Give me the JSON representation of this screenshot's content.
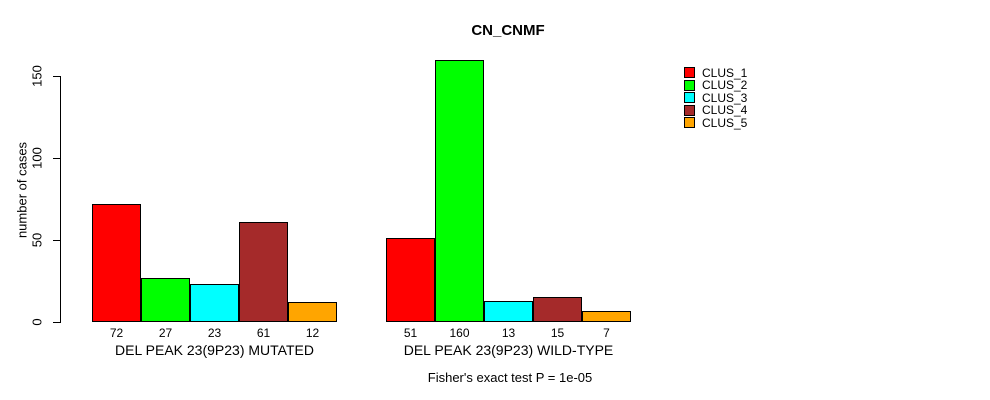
{
  "title": "CN_CNMF",
  "footnote": "Fisher's exact test P = 1e-05",
  "y_axis": {
    "label": "number of cases",
    "ticks": [
      0,
      50,
      100,
      150
    ]
  },
  "legend": {
    "items": [
      {
        "label": "CLUS_1",
        "color": "#FF0000"
      },
      {
        "label": "CLUS_2",
        "color": "#00FF00"
      },
      {
        "label": "CLUS_3",
        "color": "#00FFFF"
      },
      {
        "label": "CLUS_4",
        "color": "#A52A2A"
      },
      {
        "label": "CLUS_5",
        "color": "#FFA500"
      }
    ]
  },
  "chart_data": {
    "type": "bar",
    "title": "CN_CNMF",
    "xlabel": "",
    "ylabel": "number of cases",
    "ylim": [
      0,
      160
    ],
    "yticks": [
      0,
      50,
      100,
      150
    ],
    "grid": false,
    "legend_position": "right-outside",
    "series_names": [
      "CLUS_1",
      "CLUS_2",
      "CLUS_3",
      "CLUS_4",
      "CLUS_5"
    ],
    "series_colors": [
      "#FF0000",
      "#00FF00",
      "#00FFFF",
      "#A52A2A",
      "#FFA500"
    ],
    "groups": [
      {
        "label": "DEL PEAK 23(9P23) MUTATED",
        "values": [
          72,
          27,
          23,
          61,
          12
        ]
      },
      {
        "label": "DEL PEAK 23(9P23) WILD-TYPE",
        "values": [
          51,
          160,
          13,
          15,
          7
        ]
      }
    ],
    "value_labels_shown": true,
    "annotation": "Fisher's exact test P = 1e-05"
  }
}
